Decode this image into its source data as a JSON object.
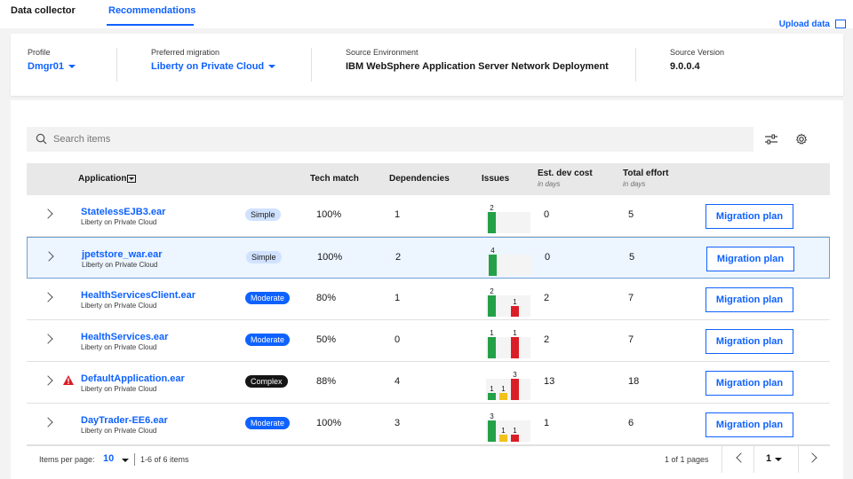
{
  "tabs": [
    {
      "label": "Data collector",
      "active": false
    },
    {
      "label": "Recommendations",
      "active": true
    }
  ],
  "upload_label": "Upload data",
  "summary": {
    "profile_label": "Profile",
    "profile_value": "Dmgr01",
    "migration_label": "Preferred migration",
    "migration_value": "Liberty on Private Cloud",
    "env_label": "Source Environment",
    "env_value": "IBM WebSphere Application Server Network Deployment",
    "version_label": "Source Version",
    "version_value": "9.0.0.4"
  },
  "search": {
    "placeholder": "Search items"
  },
  "table": {
    "headers": {
      "application": "Application",
      "tech_match": "Tech match",
      "dependencies": "Dependencies",
      "issues": "Issues",
      "dev_cost": "Est. dev cost",
      "dev_cost_sub": "in days",
      "total_effort": "Total effort",
      "total_effort_sub": "in days"
    },
    "rows": [
      {
        "name": "StatelessEJB3.ear",
        "target": "Liberty on Private Cloud",
        "complexity": "Simple",
        "tech_match": "100%",
        "dependencies": "1",
        "issues": [
          2,
          0,
          0
        ],
        "dev_cost": "0",
        "total_effort": "5",
        "action": "Migration plan",
        "warning": false
      },
      {
        "name": "jpetstore_war.ear",
        "target": "Liberty on Private Cloud",
        "complexity": "Simple",
        "tech_match": "100%",
        "dependencies": "2",
        "issues": [
          4,
          0,
          0
        ],
        "dev_cost": "0",
        "total_effort": "5",
        "action": "Migration plan",
        "warning": false
      },
      {
        "name": "HealthServicesClient.ear",
        "target": "Liberty on Private Cloud",
        "complexity": "Moderate",
        "tech_match": "80%",
        "dependencies": "1",
        "issues": [
          2,
          0,
          1
        ],
        "dev_cost": "2",
        "total_effort": "7",
        "action": "Migration plan",
        "warning": false
      },
      {
        "name": "HealthServices.ear",
        "target": "Liberty on Private Cloud",
        "complexity": "Moderate",
        "tech_match": "50%",
        "dependencies": "0",
        "issues": [
          1,
          0,
          1
        ],
        "dev_cost": "2",
        "total_effort": "7",
        "action": "Migration plan",
        "warning": false
      },
      {
        "name": "DefaultApplication.ear",
        "target": "Liberty on Private Cloud",
        "complexity": "Complex",
        "tech_match": "88%",
        "dependencies": "4",
        "issues": [
          1,
          1,
          3
        ],
        "dev_cost": "13",
        "total_effort": "18",
        "action": "Migration plan",
        "warning": true
      },
      {
        "name": "DayTrader-EE6.ear",
        "target": "Liberty on Private Cloud",
        "complexity": "Moderate",
        "tech_match": "100%",
        "dependencies": "3",
        "issues": [
          3,
          1,
          1
        ],
        "dev_cost": "1",
        "total_effort": "6",
        "action": "Migration plan",
        "warning": false
      }
    ],
    "selected_row": 1
  },
  "pagination": {
    "items_per_page_label": "Items per page:",
    "items_per_page": "10",
    "range": "1-6 of 6 items",
    "pages": "1 of 1 pages",
    "current_page": "1"
  },
  "colors": {
    "accent": "#0f62fe",
    "issue_low": "#24a148",
    "issue_medium": "#f1c21b",
    "issue_high": "#da1e28"
  }
}
